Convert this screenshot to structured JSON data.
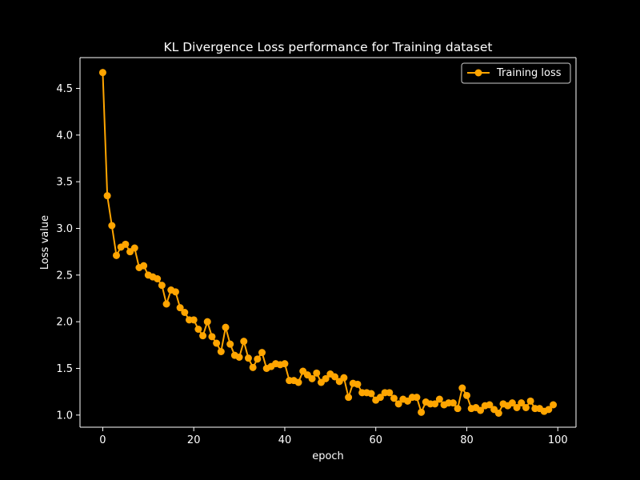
{
  "chart_data": {
    "type": "line",
    "title": "KL Divergence Loss performance for Training dataset",
    "xlabel": "epoch",
    "ylabel": "Loss value",
    "xlim": [
      -5,
      104
    ],
    "ylim": [
      0.87,
      4.83
    ],
    "xticks": [
      0,
      20,
      40,
      60,
      80,
      100
    ],
    "yticks": [
      1.0,
      1.5,
      2.0,
      2.5,
      3.0,
      3.5,
      4.0,
      4.5
    ],
    "grid": false,
    "legend_position": "top-right",
    "colors": {
      "background": "#000000",
      "axes": "#ffffff",
      "text": "#ffffff",
      "series": "#ffa500"
    },
    "series": [
      {
        "name": "Training loss",
        "color": "#ffa500",
        "marker": "circle",
        "x": [
          0,
          1,
          2,
          3,
          4,
          5,
          6,
          7,
          8,
          9,
          10,
          11,
          12,
          13,
          14,
          15,
          16,
          17,
          18,
          19,
          20,
          21,
          22,
          23,
          24,
          25,
          26,
          27,
          28,
          29,
          30,
          31,
          32,
          33,
          34,
          35,
          36,
          37,
          38,
          39,
          40,
          41,
          42,
          43,
          44,
          45,
          46,
          47,
          48,
          49,
          50,
          51,
          52,
          53,
          54,
          55,
          56,
          57,
          58,
          59,
          60,
          61,
          62,
          63,
          64,
          65,
          66,
          67,
          68,
          69,
          70,
          71,
          72,
          73,
          74,
          75,
          76,
          77,
          78,
          79,
          80,
          81,
          82,
          83,
          84,
          85,
          86,
          87,
          88,
          89,
          90,
          91,
          92,
          93,
          94,
          95,
          96,
          97,
          98,
          99
        ],
        "y": [
          4.67,
          3.35,
          3.03,
          2.71,
          2.8,
          2.83,
          2.75,
          2.79,
          2.58,
          2.6,
          2.5,
          2.48,
          2.46,
          2.39,
          2.19,
          2.34,
          2.32,
          2.15,
          2.1,
          2.02,
          2.02,
          1.92,
          1.85,
          2.0,
          1.84,
          1.77,
          1.68,
          1.94,
          1.76,
          1.64,
          1.62,
          1.79,
          1.61,
          1.51,
          1.6,
          1.67,
          1.5,
          1.52,
          1.55,
          1.54,
          1.55,
          1.37,
          1.37,
          1.35,
          1.47,
          1.43,
          1.39,
          1.45,
          1.35,
          1.39,
          1.44,
          1.41,
          1.36,
          1.4,
          1.19,
          1.34,
          1.33,
          1.24,
          1.24,
          1.23,
          1.16,
          1.19,
          1.24,
          1.24,
          1.18,
          1.12,
          1.17,
          1.15,
          1.19,
          1.19,
          1.03,
          1.14,
          1.12,
          1.12,
          1.17,
          1.11,
          1.13,
          1.13,
          1.07,
          1.29,
          1.21,
          1.07,
          1.08,
          1.05,
          1.1,
          1.11,
          1.06,
          1.02,
          1.12,
          1.1,
          1.13,
          1.08,
          1.13,
          1.08,
          1.15,
          1.07,
          1.07,
          1.04,
          1.06,
          1.11
        ]
      }
    ]
  }
}
